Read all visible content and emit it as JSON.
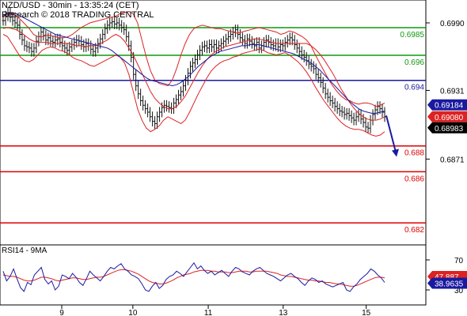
{
  "header": {
    "title": "NZD/USD - 30min - 13:35:24 (CET)",
    "copyright": "Research © 2018 TRADING CENTRAL"
  },
  "chart_data": [
    {
      "type": "line",
      "panel": "price",
      "series": [
        {
          "kind": "candles",
          "values": [
            0.6992,
            0.6996,
            0.6999,
            0.6995,
            0.6992,
            0.699,
            0.6988,
            0.698,
            0.6975,
            0.697,
            0.6969,
            0.6968,
            0.6965,
            0.6968,
            0.6974,
            0.6978,
            0.6982,
            0.6979,
            0.6975,
            0.6977,
            0.6974,
            0.6973,
            0.6975,
            0.6976,
            0.6973,
            0.697,
            0.6968,
            0.6966,
            0.6969,
            0.6971,
            0.6973,
            0.6975,
            0.6974,
            0.6971,
            0.6969,
            0.6972,
            0.697,
            0.6967,
            0.6965,
            0.6968,
            0.6972,
            0.6976,
            0.698,
            0.6985,
            0.6988,
            0.699,
            0.6991,
            0.6989,
            0.699,
            0.6988,
            0.6986,
            0.6984,
            0.6978,
            0.697,
            0.696,
            0.6945,
            0.6935,
            0.6928,
            0.6922,
            0.6918,
            0.6915,
            0.6912,
            0.6908,
            0.6904,
            0.6902,
            0.6908,
            0.6912,
            0.6916,
            0.6918,
            0.6917,
            0.6916,
            0.6915,
            0.692,
            0.6923,
            0.6927,
            0.693,
            0.6935,
            0.694,
            0.6946,
            0.6952,
            0.6955,
            0.6958,
            0.6962,
            0.6966,
            0.6969,
            0.697,
            0.6968,
            0.6971,
            0.6969,
            0.6971,
            0.6968,
            0.697,
            0.6972,
            0.6974,
            0.6976,
            0.6978,
            0.698,
            0.6982,
            0.6984,
            0.698,
            0.6977,
            0.6975,
            0.6972,
            0.6976,
            0.6974,
            0.6972,
            0.697,
            0.6973,
            0.6968,
            0.697,
            0.6973,
            0.6975,
            0.6973,
            0.6971,
            0.697,
            0.6972,
            0.6969,
            0.6971,
            0.697,
            0.6973,
            0.6975,
            0.6977,
            0.6975,
            0.6971,
            0.6968,
            0.6965,
            0.6962,
            0.696,
            0.6957,
            0.6954,
            0.6952,
            0.695,
            0.6945,
            0.6942,
            0.6938,
            0.6933,
            0.6928,
            0.6925,
            0.6922,
            0.692,
            0.6917,
            0.6915,
            0.6913,
            0.6912,
            0.691,
            0.6911,
            0.6909,
            0.6907,
            0.6905,
            0.6908,
            0.691,
            0.6906,
            0.6903,
            0.6899,
            0.6898,
            0.6905,
            0.691,
            0.6914,
            0.6917,
            0.6915,
            0.6912,
            0.6908
          ]
        },
        {
          "kind": "bollinger-mid",
          "values": [
            0.6985,
            0.6986,
            0.6985,
            0.6984,
            0.6982,
            0.6979,
            0.6976,
            0.6974,
            0.6973,
            0.6973,
            0.6973,
            0.6972,
            0.6972,
            0.6972,
            0.6972,
            0.6972,
            0.6971,
            0.697,
            0.697,
            0.6969,
            0.697,
            0.697,
            0.6971,
            0.6973,
            0.6975,
            0.6978,
            0.698,
            0.6978,
            0.6974,
            0.6968,
            0.6962,
            0.6954,
            0.6946,
            0.6938,
            0.693,
            0.6924,
            0.692,
            0.6917,
            0.6915,
            0.6915,
            0.6917,
            0.6921,
            0.6926,
            0.6933,
            0.694,
            0.6947,
            0.6953,
            0.6958,
            0.6962,
            0.6965,
            0.6967,
            0.6969,
            0.697,
            0.6971,
            0.6972,
            0.6973,
            0.6974,
            0.6975,
            0.6976,
            0.6976,
            0.6975,
            0.6974,
            0.6973,
            0.6972,
            0.6972,
            0.6972,
            0.6972,
            0.6972,
            0.6972,
            0.6972,
            0.6972,
            0.697,
            0.6967,
            0.6963,
            0.6958,
            0.6952,
            0.6946,
            0.6939,
            0.6932,
            0.6926,
            0.692,
            0.6915,
            0.6911,
            0.6908,
            0.6906,
            0.6905,
            0.6905,
            0.6906,
            0.6908
          ]
        },
        {
          "kind": "bollinger-upper",
          "values": [
            0.6995,
            0.6998,
            0.6998,
            0.6996,
            0.6993,
            0.6989,
            0.6985,
            0.698,
            0.6978,
            0.6978,
            0.6979,
            0.6979,
            0.6978,
            0.6977,
            0.6977,
            0.6978,
            0.698,
            0.6983,
            0.6986,
            0.6988,
            0.699,
            0.6991,
            0.6992,
            0.6993,
            0.6994,
            0.6995,
            0.6996,
            0.6998,
            0.6999,
            0.7,
            0.6998,
            0.699,
            0.6975,
            0.696,
            0.6948,
            0.694,
            0.6937,
            0.6936,
            0.6935,
            0.694,
            0.695,
            0.6962,
            0.6972,
            0.698,
            0.6985,
            0.6987,
            0.6988,
            0.6987,
            0.6986,
            0.6985,
            0.6985,
            0.6984,
            0.6983,
            0.6982,
            0.6981,
            0.6982,
            0.6983,
            0.6984,
            0.6985,
            0.6986,
            0.6985,
            0.6984,
            0.6983,
            0.6982,
            0.698,
            0.6981,
            0.6983,
            0.6982,
            0.698,
            0.6978,
            0.6975,
            0.697,
            0.6962,
            0.6955,
            0.6948,
            0.6941,
            0.6935,
            0.693,
            0.6926,
            0.6923,
            0.6922,
            0.692,
            0.6919,
            0.692,
            0.692,
            0.6919,
            0.6917,
            0.6918,
            0.692
          ]
        },
        {
          "kind": "bollinger-lower",
          "values": [
            0.698,
            0.6978,
            0.6972,
            0.6966,
            0.696,
            0.6957,
            0.6956,
            0.6958,
            0.6962,
            0.6966,
            0.6968,
            0.6969,
            0.6968,
            0.6966,
            0.6965,
            0.6963,
            0.696,
            0.6958,
            0.6957,
            0.6955,
            0.6953,
            0.6952,
            0.6954,
            0.6956,
            0.6958,
            0.696,
            0.6962,
            0.696,
            0.6955,
            0.6945,
            0.693,
            0.6915,
            0.6905,
            0.6898,
            0.6895,
            0.6897,
            0.69,
            0.6905,
            0.6908,
            0.6906,
            0.6904,
            0.6902,
            0.6905,
            0.6912,
            0.692,
            0.6928,
            0.6935,
            0.6942,
            0.6948,
            0.6952,
            0.6955,
            0.6957,
            0.6958,
            0.696,
            0.6961,
            0.6963,
            0.6964,
            0.6965,
            0.6966,
            0.6967,
            0.6966,
            0.6964,
            0.6963,
            0.6962,
            0.6963,
            0.6964,
            0.6962,
            0.6959,
            0.6956,
            0.6952,
            0.6947,
            0.6941,
            0.6934,
            0.6928,
            0.6922,
            0.6917,
            0.6912,
            0.6907,
            0.6903,
            0.69,
            0.6898,
            0.6897,
            0.6897,
            0.6896,
            0.6894,
            0.6892,
            0.6891,
            0.6892,
            0.6895
          ]
        },
        {
          "kind": "moving-average",
          "values": [
            0.6996,
            0.6998,
            0.6999,
            0.6998,
            0.6996,
            0.6994,
            0.6992,
            0.699,
            0.6988,
            0.6986,
            0.6984,
            0.6982,
            0.698,
            0.6979,
            0.6978,
            0.6977,
            0.6976,
            0.6975,
            0.6974,
            0.6973,
            0.6972,
            0.6971,
            0.697,
            0.6969,
            0.6968,
            0.6966,
            0.6963,
            0.696,
            0.6957,
            0.6954,
            0.6951,
            0.6948,
            0.6945,
            0.6942,
            0.694,
            0.6939,
            0.6938,
            0.6937,
            0.6936,
            0.6935,
            0.6936,
            0.6938,
            0.6941,
            0.6944,
            0.6948,
            0.6952,
            0.6955,
            0.6958,
            0.6961,
            0.6963,
            0.6965,
            0.6966,
            0.6967,
            0.6968,
            0.6969,
            0.697,
            0.697,
            0.6971,
            0.6971,
            0.6971,
            0.697,
            0.6969,
            0.6968,
            0.6967,
            0.6966,
            0.6965,
            0.6964,
            0.6963,
            0.6961,
            0.6959,
            0.6957,
            0.6955,
            0.6952,
            0.6949,
            0.6945,
            0.6941,
            0.6937,
            0.6933,
            0.6929,
            0.6925,
            0.6921,
            0.6918,
            0.6915,
            0.6913,
            0.6912,
            0.6911,
            0.6911,
            0.6912,
            0.6913
          ]
        }
      ],
      "levels": [
        {
          "label": "0.6985",
          "value": 0.69858,
          "color": "#119911"
        },
        {
          "label": "0.696",
          "value": 0.69617,
          "color": "#119911"
        },
        {
          "label": "0.694",
          "value": 0.69398,
          "color": "#1a1aa0"
        },
        {
          "label": "0.688",
          "value": 0.68825,
          "color": "#dd0000"
        },
        {
          "label": "0.686",
          "value": 0.68599,
          "color": "#dd0000"
        },
        {
          "label": "0.682",
          "value": 0.68152,
          "color": "#dd0000"
        }
      ],
      "y_ticks": [
        {
          "label": "0.6990",
          "value": 0.699
        },
        {
          "label": "0.6931",
          "value": 0.6931
        },
        {
          "label": "0.6871",
          "value": 0.6871
        }
      ],
      "price_tags": [
        {
          "label": "0.69184",
          "value": 0.69184,
          "color": "#1a1aa0"
        },
        {
          "label": "0.69080",
          "value": 0.6908,
          "color": "#dd2222"
        },
        {
          "label": "0.68983",
          "value": 0.68983,
          "color": "#000000"
        }
      ],
      "forecast_arrow": {
        "from": 0.6909,
        "to": 0.6873,
        "color": "#1a1aa0"
      },
      "ylim": [
        0.6796,
        0.701
      ]
    },
    {
      "type": "line",
      "panel": "rsi",
      "title": "RSI14 - 9MA",
      "series": [
        {
          "kind": "rsi",
          "values": [
            55,
            42,
            48,
            58,
            45,
            33,
            28,
            40,
            37,
            50,
            55,
            60,
            44,
            38,
            42,
            30,
            35,
            50,
            48,
            45,
            52,
            47,
            40,
            36,
            45,
            55,
            50,
            46,
            42,
            48,
            55,
            60,
            58,
            62,
            65,
            58,
            55,
            50,
            48,
            45,
            38,
            30,
            28,
            35,
            40,
            32,
            36,
            44,
            48,
            50,
            55,
            52,
            48,
            54,
            60,
            66,
            58,
            62,
            56,
            52,
            55,
            50,
            53,
            56,
            52,
            48,
            55,
            60,
            58,
            54,
            52,
            50,
            55,
            58,
            60,
            56,
            52,
            50,
            48,
            45,
            42,
            46,
            50,
            52,
            48,
            45,
            40,
            36,
            42,
            46,
            44,
            40,
            42,
            38,
            36,
            34,
            36,
            38,
            40,
            30,
            28,
            34,
            38,
            44,
            48,
            52,
            58,
            55,
            50,
            46,
            40
          ]
        },
        {
          "kind": "rsi-ma",
          "values": [
            50,
            49,
            48,
            48,
            47,
            45,
            43,
            42,
            42,
            43,
            45,
            47,
            47,
            46,
            45,
            43,
            42,
            43,
            44,
            45,
            46,
            46,
            45,
            44,
            44,
            45,
            46,
            47,
            47,
            48,
            50,
            52,
            54,
            56,
            57,
            57,
            56,
            55,
            53,
            51,
            48,
            45,
            42,
            40,
            39,
            38,
            38,
            39,
            41,
            43,
            46,
            48,
            50,
            51,
            52,
            54,
            55,
            56,
            56,
            56,
            55,
            55,
            54,
            54,
            54,
            53,
            53,
            54,
            55,
            55,
            55,
            54,
            54,
            55,
            55,
            55,
            55,
            54,
            53,
            52,
            50,
            49,
            48,
            48,
            47,
            46,
            45,
            44,
            43,
            43,
            42,
            42,
            41,
            40,
            40,
            39,
            38,
            38,
            37,
            36,
            35,
            35,
            36,
            38,
            40,
            42,
            44,
            46,
            47,
            47,
            46
          ]
        }
      ],
      "y_ticks": [
        {
          "label": "70",
          "value": 70
        },
        {
          "label": "30",
          "value": 30
        }
      ],
      "value_tags": [
        {
          "label": "47.887",
          "value": 47.887,
          "color": "#dd2222"
        },
        {
          "label": "38.9635",
          "value": 38.9635,
          "color": "#1a1aa0"
        }
      ],
      "ylim": [
        10,
        90
      ]
    }
  ],
  "x_axis": {
    "ticks": [
      {
        "label": "9",
        "position": 0.145
      },
      {
        "label": "10",
        "position": 0.312
      },
      {
        "label": "11",
        "position": 0.489
      },
      {
        "label": "13",
        "position": 0.665
      },
      {
        "label": "15",
        "position": 0.86
      }
    ]
  }
}
